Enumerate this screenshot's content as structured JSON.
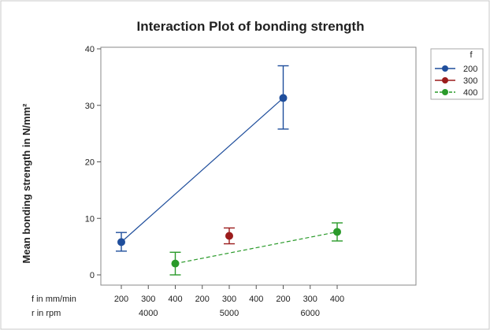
{
  "chart_data": {
    "type": "line",
    "title": "Interaction Plot of bonding strength",
    "ylabel": "Mean bonding strength in N/mm²",
    "ylim": [
      0,
      40
    ],
    "yticks": [
      0,
      10,
      20,
      30,
      40
    ],
    "x_levels": {
      "f": {
        "label": "f in mm/min",
        "values": [
          "200",
          "300",
          "400",
          "200",
          "300",
          "400",
          "200",
          "300",
          "400"
        ]
      },
      "r": {
        "label": "r in rpm",
        "values": [
          "4000",
          "5000",
          "6000"
        ]
      }
    },
    "legend": {
      "title": "f",
      "placement": "right"
    },
    "series": [
      {
        "name": "200",
        "color": "#1f4e9c",
        "line": "solid",
        "points": [
          {
            "r": "4000",
            "f": "200",
            "y": 5.8,
            "low": 4.2,
            "high": 7.5
          },
          {
            "r": "6000",
            "f": "200",
            "y": 31.3,
            "low": 25.8,
            "high": 37.0
          }
        ]
      },
      {
        "name": "300",
        "color": "#9b1c1c",
        "line": "solid",
        "points": [
          {
            "r": "5000",
            "f": "300",
            "y": 6.9,
            "low": 5.5,
            "high": 8.3
          }
        ]
      },
      {
        "name": "400",
        "color": "#2a9a2a",
        "line": "dashed",
        "points": [
          {
            "r": "4000",
            "f": "400",
            "y": 2.0,
            "low": 0.0,
            "high": 4.0
          },
          {
            "r": "6000",
            "f": "400",
            "y": 7.6,
            "low": 6.0,
            "high": 9.2
          }
        ]
      }
    ]
  }
}
